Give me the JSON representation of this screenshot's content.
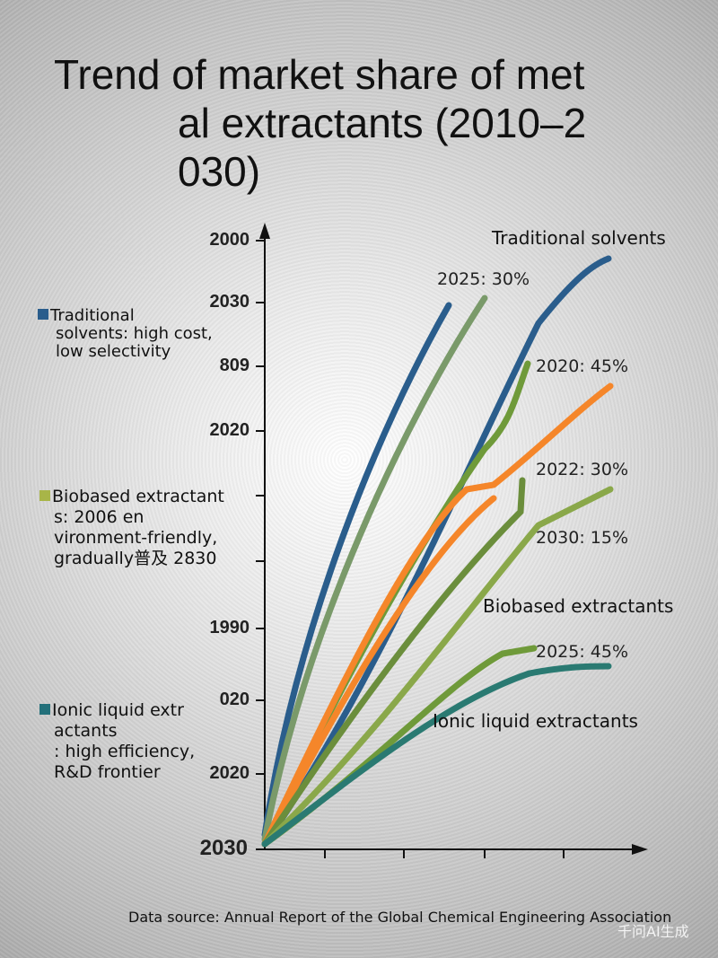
{
  "title_lines": [
    "Trend of market share of met",
    "al extractants (2010–2",
    "030)"
  ],
  "chart_data": {
    "type": "line",
    "title": "Trend of market share of metal extractants (2010–2030)",
    "y_tick_labels": [
      "2000",
      "2030",
      "809",
      "2020",
      "",
      "",
      "1990",
      "020",
      "2020",
      "2030"
    ],
    "grid": false,
    "legend_placement": "left",
    "legend": [
      {
        "text": [
          "Traditional",
          "solvents: high cost,",
          "low selectivity"
        ],
        "color": "#2a5d8c"
      },
      {
        "text": [
          "Biobased extractant",
          "s: 2006 en",
          "vironment-friendly,",
          "gradually普及 2830"
        ],
        "color": "#a8b548"
      },
      {
        "text": [
          "Ionic liquid extr",
          "actants",
          ": high efficiency,",
          "R&D frontier"
        ],
        "color": "#23707a"
      }
    ],
    "series_labels": [
      "Traditional solvents",
      "Biobased extractants",
      "Ionic liquid extractants"
    ],
    "annotations": [
      "2025: 30%",
      "2020: 45%",
      "2022: 30%",
      "2030: 15%",
      "2025: 45%"
    ],
    "series_colors": [
      "#2a5d8c",
      "#7a9a6a",
      "#2a5d8c",
      "#6f9a3a",
      "#f5862a",
      "#f5862a",
      "#6b8e3c",
      "#8aa84a",
      "#6f9a3a",
      "#2a7a72"
    ]
  },
  "source": "Data source: Annual Report of the Global Chemical Engineering Association",
  "watermark": "千问AI生成"
}
